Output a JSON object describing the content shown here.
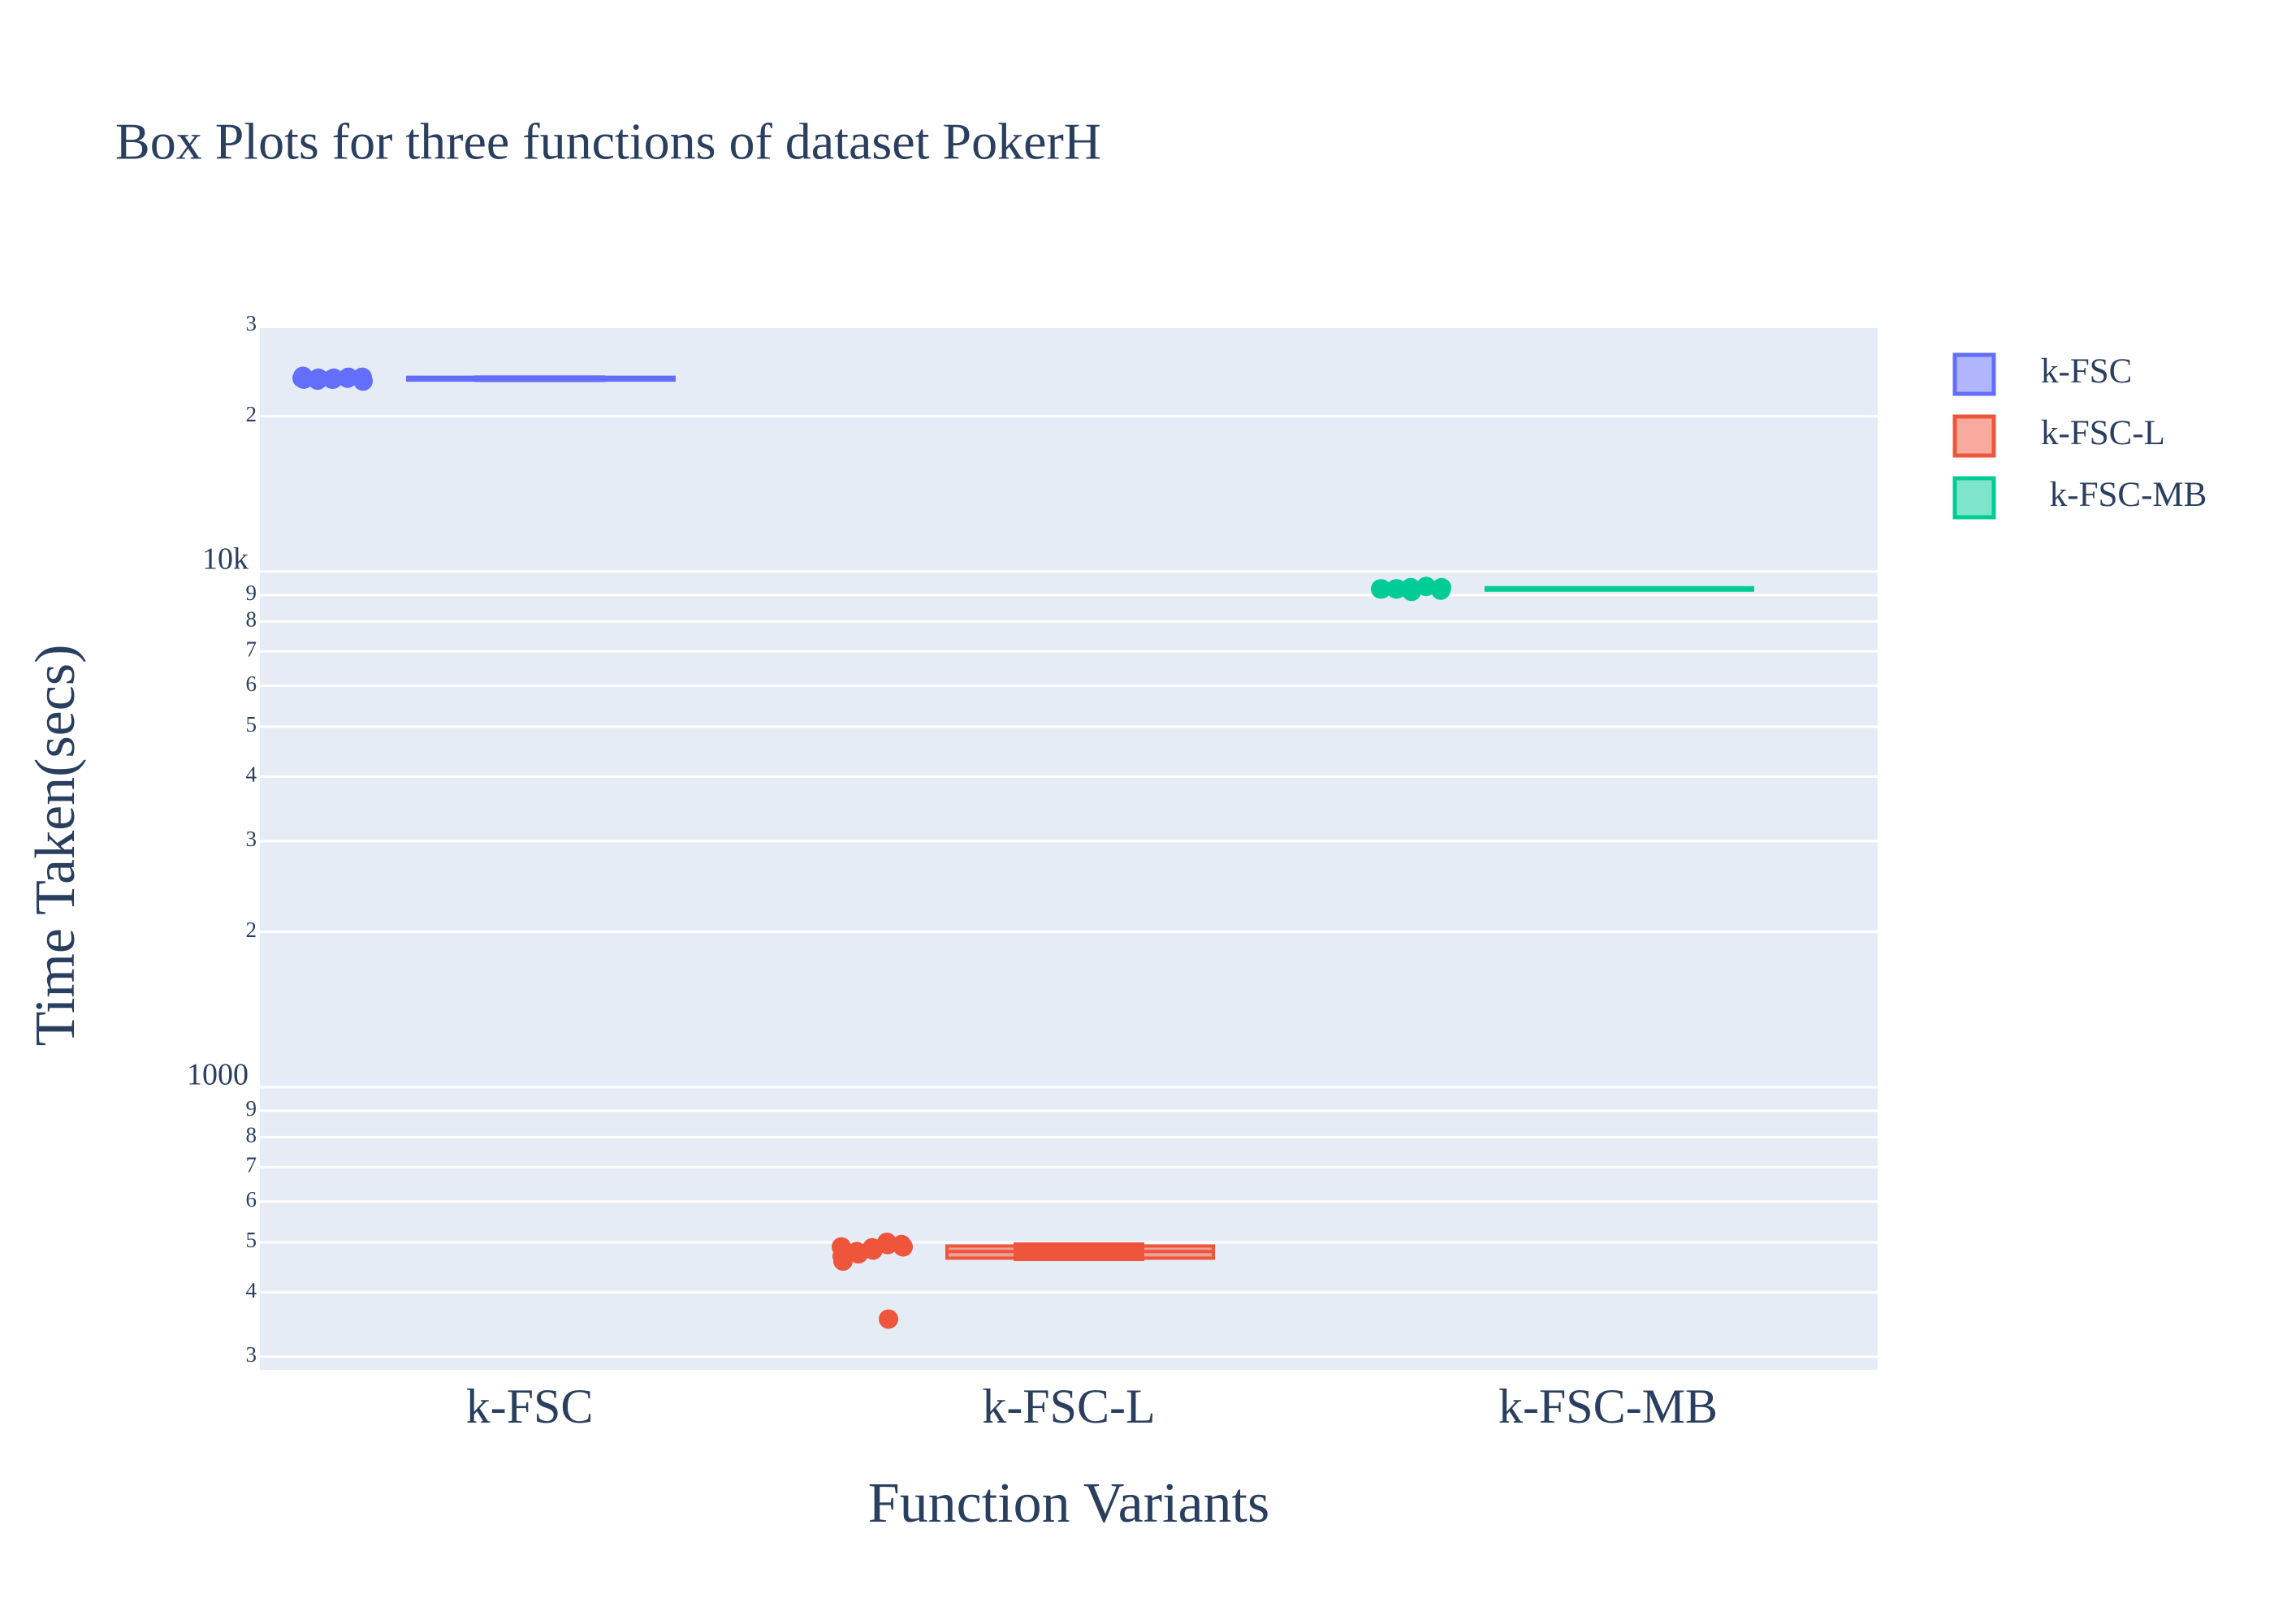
{
  "chart_data": {
    "type": "box",
    "title": "Box Plots for three functions of dataset PokerH",
    "x_label": "Function Variants",
    "y_label": "Time Taken(secs)",
    "y_log": true,
    "grid": true,
    "legend_position": "right",
    "categories": [
      "k-FSC",
      "k-FSC-L",
      "k-FSC-MB"
    ],
    "ylim": [
      283,
      29650
    ],
    "yticks": [
      {
        "value": 300,
        "label": "3"
      },
      {
        "value": 400,
        "label": "4"
      },
      {
        "value": 500,
        "label": "5"
      },
      {
        "value": 600,
        "label": "6"
      },
      {
        "value": 700,
        "label": "7"
      },
      {
        "value": 800,
        "label": "8"
      },
      {
        "value": 900,
        "label": "9"
      },
      1000,
      {
        "value": 2000,
        "label": "2"
      },
      {
        "value": 3000,
        "label": "3"
      },
      {
        "value": 4000,
        "label": "4"
      },
      {
        "value": 5000,
        "label": "5"
      },
      {
        "value": 6000,
        "label": "6"
      },
      {
        "value": 7000,
        "label": "7"
      },
      {
        "value": 8000,
        "label": "8"
      },
      {
        "value": 9000,
        "label": "9"
      },
      {
        "value": 10000,
        "label": "10k"
      },
      {
        "value": 20000,
        "label": "2"
      },
      {
        "value": 30000,
        "label": "3"
      }
    ],
    "series": [
      {
        "name": "k-FSC",
        "color": "#636efa",
        "lowerfence": 23300,
        "q1": 23500,
        "median": 23700,
        "q3": 23800,
        "upperfence": 24000,
        "points": [
          23700,
          23600,
          23800,
          23500,
          23700,
          23900,
          23600,
          23400,
          23700,
          23800,
          23600,
          23700
        ]
      },
      {
        "name": "k-FSC-L",
        "color": "#EF553B",
        "lowerfence": 460,
        "q1": 466,
        "median": 480,
        "q3": 492,
        "upperfence": 500,
        "points": [
          490,
          485,
          495,
          480,
          500,
          470,
          488,
          492,
          478,
          495,
          460,
          483,
          490,
          475,
          355
        ]
      },
      {
        "name": " k-FSC-MB",
        "color": "#00cc96",
        "lowerfence": 9150,
        "q1": 9200,
        "median": 9250,
        "q3": 9300,
        "upperfence": 9350,
        "points": [
          9250,
          9300,
          9200,
          9250,
          9350,
          9250,
          9150,
          9300,
          9250
        ]
      }
    ]
  }
}
